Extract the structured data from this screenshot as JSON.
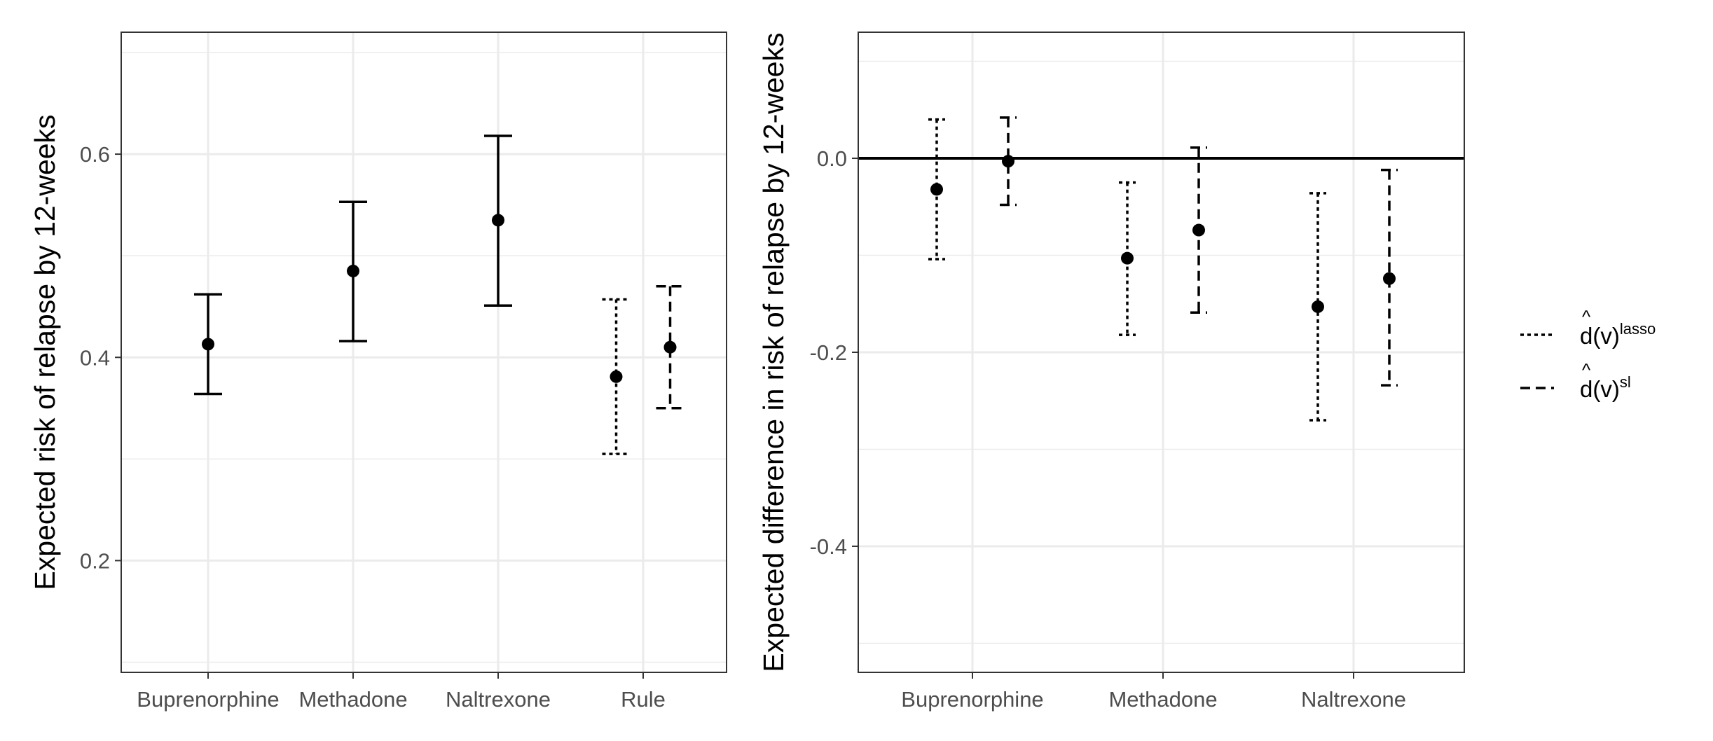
{
  "chart_data": [
    {
      "type": "errorbar",
      "ylabel": "Expected risk of relapse by 12-weeks",
      "xlabel": "",
      "categories": [
        "Buprenorphine",
        "Methadone",
        "Naltrexone",
        "Rule"
      ],
      "ylim": [
        0.09,
        0.72
      ],
      "yticks": [
        0.2,
        0.4,
        0.6
      ],
      "ytick_labels": [
        "0.2",
        "0.4",
        "0.6"
      ],
      "grid": true,
      "points": [
        {
          "category": "Buprenorphine",
          "style": "solid",
          "estimate": 0.413,
          "lower": 0.364,
          "upper": 0.462
        },
        {
          "category": "Methadone",
          "style": "solid",
          "estimate": 0.485,
          "lower": 0.416,
          "upper": 0.553
        },
        {
          "category": "Naltrexone",
          "style": "solid",
          "estimate": 0.535,
          "lower": 0.451,
          "upper": 0.618
        },
        {
          "category": "Rule",
          "style": "dotted",
          "estimate": 0.381,
          "lower": 0.305,
          "upper": 0.457
        },
        {
          "category": "Rule",
          "style": "dashed",
          "estimate": 0.41,
          "lower": 0.35,
          "upper": 0.47
        }
      ]
    },
    {
      "type": "errorbar",
      "ylabel": "Expected difference in risk of relapse by 12-weeks",
      "xlabel": "",
      "categories": [
        "Buprenorphine",
        "Methadone",
        "Naltrexone"
      ],
      "ylim": [
        -0.53,
        0.13
      ],
      "yticks": [
        -0.4,
        -0.2,
        0.0
      ],
      "ytick_labels": [
        "-0.4",
        "-0.2",
        "0.0"
      ],
      "grid": true,
      "reference_line": 0.0,
      "points": [
        {
          "category": "Buprenorphine",
          "style": "dotted",
          "estimate": -0.032,
          "lower": -0.104,
          "upper": 0.04
        },
        {
          "category": "Buprenorphine",
          "style": "dashed",
          "estimate": -0.003,
          "lower": -0.048,
          "upper": 0.042
        },
        {
          "category": "Methadone",
          "style": "dotted",
          "estimate": -0.103,
          "lower": -0.182,
          "upper": -0.025
        },
        {
          "category": "Methadone",
          "style": "dashed",
          "estimate": -0.074,
          "lower": -0.159,
          "upper": 0.011
        },
        {
          "category": "Naltrexone",
          "style": "dotted",
          "estimate": -0.153,
          "lower": -0.27,
          "upper": -0.036
        },
        {
          "category": "Naltrexone",
          "style": "dashed",
          "estimate": -0.124,
          "lower": -0.234,
          "upper": -0.012
        }
      ]
    }
  ],
  "legend": {
    "placement": "right",
    "items": [
      {
        "style": "dotted",
        "base": "d(v)",
        "hat": "^",
        "superscript": "lasso"
      },
      {
        "style": "dashed",
        "base": "d(v)",
        "hat": "^",
        "superscript": "sl"
      }
    ]
  }
}
